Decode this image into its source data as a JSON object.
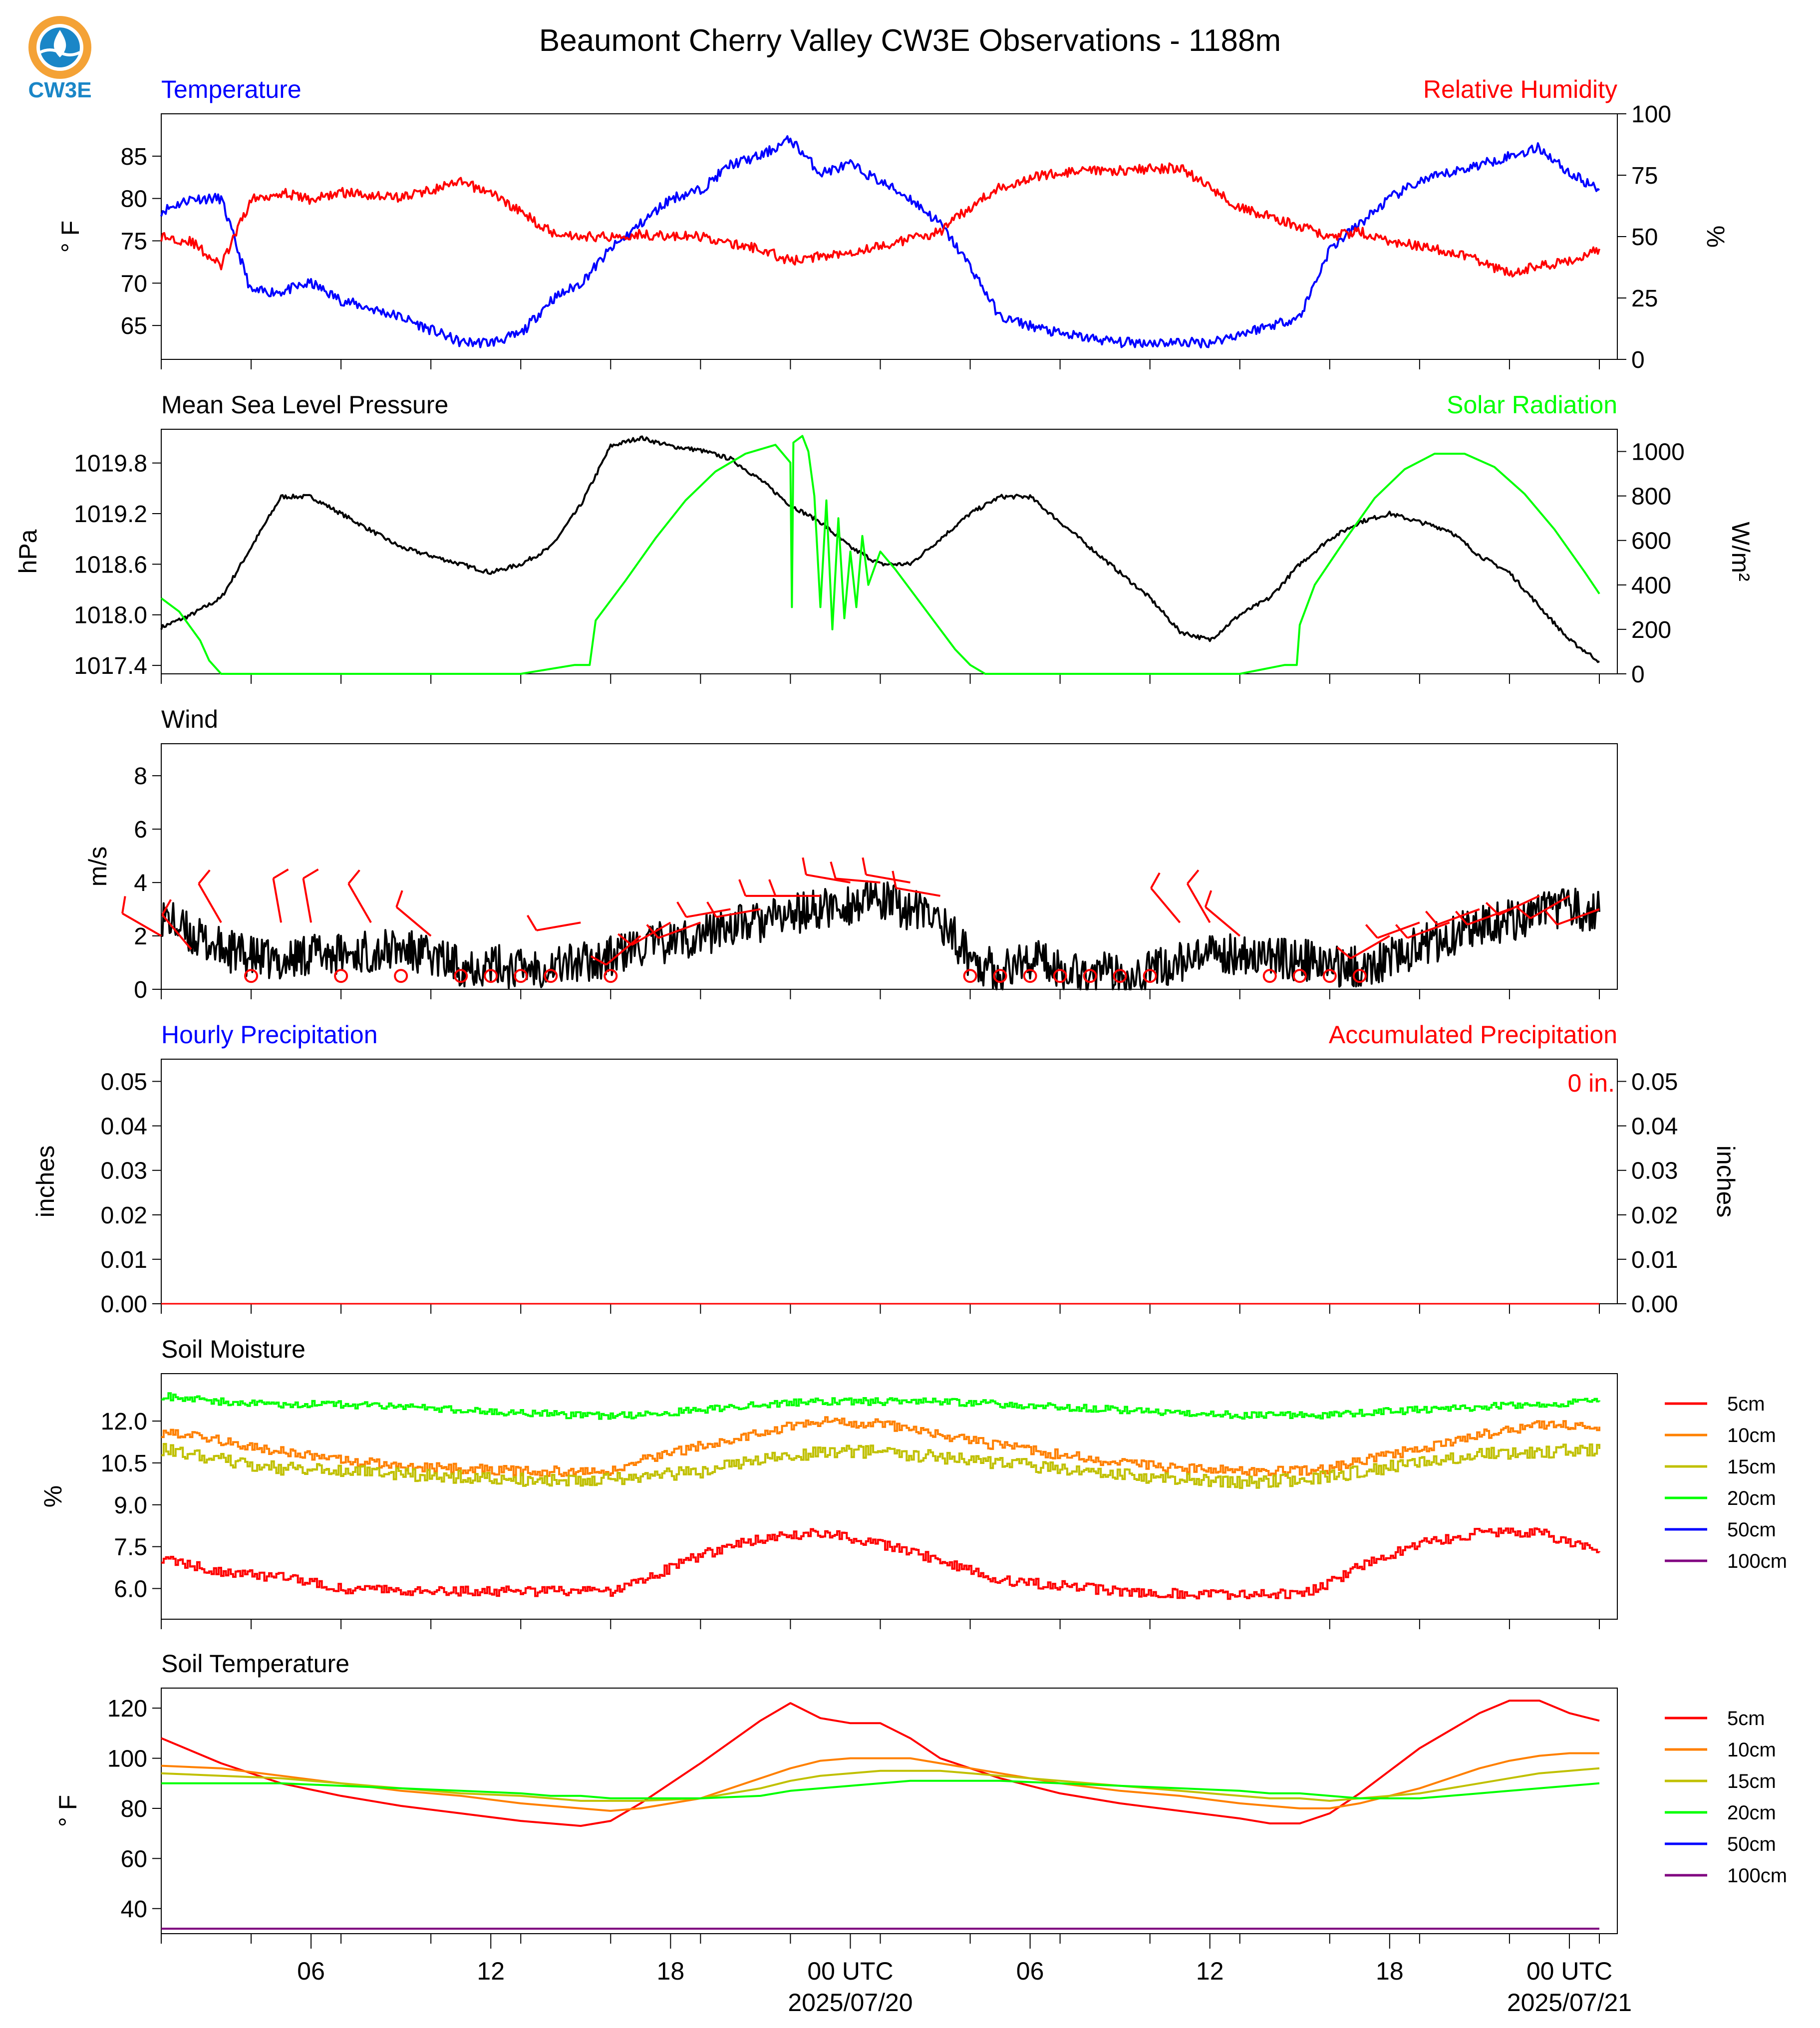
{
  "page": {
    "title": "Beaumont Cherry Valley CW3E Observations - 1188m",
    "logo_text": "CW3E",
    "x_tick_labels": [
      "06",
      "12",
      "18",
      "00 UTC",
      "06",
      "12",
      "18",
      "00 UTC"
    ],
    "x_date_labels": [
      "2025/07/20",
      "2025/07/21"
    ]
  },
  "colors": {
    "temperature": "#0000ff",
    "humidity": "#ff0000",
    "pressure": "#000000",
    "solar": "#00ff00",
    "wind_speed": "#000000",
    "wind_barbs": "#ff0000",
    "hourly_precip_title": "#0000ff",
    "accum_precip_title": "#ff0000",
    "soil_5cm": "#ff0000",
    "soil_10cm": "#ff8000",
    "soil_15cm": "#c0c000",
    "soil_20cm": "#00ff00",
    "soil_50cm": "#0000ff",
    "soil_100cm": "#800080",
    "logo_orange": "#f4a236",
    "logo_blue": "#1a86c7"
  },
  "chart_data": [
    {
      "id": "temp_rh",
      "type": "line",
      "title_left": "Temperature",
      "title_right": "Relative Humidity",
      "ylabel_left": "° F",
      "ylabel_right": "%",
      "ylim_left": [
        61,
        90
      ],
      "ylim_right": [
        0,
        100
      ],
      "yticks_left": [
        "65",
        "70",
        "75",
        "80",
        "85"
      ],
      "yticks_right": [
        "0",
        "25",
        "50",
        "75",
        "100"
      ],
      "x_hours": [
        0,
        1,
        2,
        3,
        4,
        5,
        6,
        8,
        10,
        11,
        12,
        13,
        14,
        15,
        16,
        17,
        18,
        19,
        20,
        21,
        22,
        23,
        24,
        25,
        26,
        27,
        28,
        29,
        30,
        32,
        34,
        35,
        36,
        37,
        38,
        39,
        40,
        41,
        42,
        43,
        44,
        45,
        46,
        47,
        48
      ],
      "series": [
        {
          "name": "Temperature",
          "axis": "left",
          "values": [
            78.5,
            80,
            80,
            69,
            69,
            70,
            68,
            66,
            63,
            63,
            64,
            68,
            70,
            74,
            77,
            80,
            81,
            84,
            85,
            87,
            83,
            84,
            82,
            80,
            77,
            72,
            66,
            65,
            64,
            63,
            63,
            63,
            64,
            65,
            66,
            74,
            77,
            80,
            82,
            83,
            84,
            85,
            86,
            83,
            81
          ]
        },
        {
          "name": "Relative Humidity",
          "axis": "right",
          "values": [
            50,
            48,
            38,
            65,
            68,
            65,
            68,
            66,
            72,
            68,
            60,
            52,
            50,
            50,
            51,
            50,
            50,
            47,
            45,
            40,
            42,
            44,
            46,
            49,
            52,
            62,
            70,
            74,
            76,
            77,
            78,
            70,
            62,
            58,
            54,
            50,
            52,
            48,
            46,
            44,
            40,
            35,
            38,
            40,
            45
          ]
        }
      ]
    },
    {
      "id": "mslp_solar",
      "type": "line",
      "title_left": "Mean Sea Level Pressure",
      "title_right": "Solar Radiation",
      "ylabel_left": "hPa",
      "ylabel_right": "W/m²",
      "ylim_left": [
        1017.3,
        1020.2
      ],
      "ylim_right": [
        0,
        1100
      ],
      "yticks_left": [
        "1017.4",
        "1018.0",
        "1018.6",
        "1019.2",
        "1019.8"
      ],
      "yticks_right": [
        "0",
        "200",
        "400",
        "600",
        "800",
        "1000"
      ],
      "pressure": {
        "name": "Mean Sea Level Pressure",
        "x": [
          0,
          1,
          2,
          3,
          4,
          5,
          6,
          7,
          8,
          9,
          10,
          11,
          12,
          13,
          14,
          15,
          16,
          17,
          18,
          19,
          20,
          21,
          22,
          23,
          24,
          25,
          26,
          27,
          28,
          29,
          30,
          31,
          32,
          33,
          34,
          35,
          36,
          37,
          38,
          39,
          40,
          41,
          42,
          43,
          44,
          45,
          46,
          47,
          48
        ],
        "y": [
          1017.85,
          1018.0,
          1018.2,
          1018.8,
          1019.4,
          1019.4,
          1019.2,
          1019.0,
          1018.8,
          1018.7,
          1018.6,
          1018.5,
          1018.6,
          1018.8,
          1019.3,
          1020.0,
          1020.1,
          1020.0,
          1019.95,
          1019.85,
          1019.6,
          1019.3,
          1019.1,
          1018.8,
          1018.6,
          1018.6,
          1018.9,
          1019.2,
          1019.4,
          1019.4,
          1019.1,
          1018.8,
          1018.5,
          1018.2,
          1017.8,
          1017.7,
          1018.0,
          1018.2,
          1018.6,
          1018.9,
          1019.1,
          1019.2,
          1019.1,
          1019.0,
          1018.7,
          1018.5,
          1018.1,
          1017.7,
          1017.45
        ]
      },
      "solar": {
        "name": "Solar Radiation",
        "x": [
          0,
          0.6,
          1.3,
          1.6,
          2,
          4,
          8,
          12,
          13.8,
          14.3,
          14.5,
          15.5,
          16.5,
          17.5,
          18.5,
          19.5,
          20.5,
          21.0,
          21.05,
          21.1,
          21.4,
          21.6,
          21.8,
          22.0,
          22.2,
          22.4,
          22.6,
          22.8,
          23.0,
          23.2,
          23.4,
          23.6,
          24.0,
          24.5,
          25.0,
          25.5,
          26.0,
          26.5,
          27.0,
          27.5,
          28,
          32,
          36,
          37.5,
          37.9,
          38.0,
          38.5,
          39.5,
          40.5,
          41.5,
          42.5,
          43.5,
          44.5,
          45.5,
          46.5,
          47.5,
          48
        ],
        "y": [
          340,
          280,
          150,
          60,
          0,
          0,
          0,
          0,
          40,
          40,
          240,
          420,
          610,
          780,
          910,
          990,
          1030,
          950,
          300,
          1040,
          1070,
          1000,
          800,
          300,
          780,
          200,
          700,
          250,
          550,
          300,
          620,
          400,
          550,
          470,
          380,
          290,
          200,
          110,
          40,
          0,
          0,
          0,
          0,
          40,
          40,
          220,
          400,
          600,
          790,
          920,
          990,
          990,
          930,
          810,
          650,
          460,
          360
        ]
      }
    },
    {
      "id": "wind",
      "type": "line",
      "title_left": "Wind",
      "ylabel_left": "m/s",
      "ylim_left": [
        0,
        9.2
      ],
      "yticks_left": [
        "0",
        "2",
        "4",
        "6",
        "8"
      ],
      "speed": {
        "x": [
          0,
          1,
          2,
          3,
          4,
          5,
          6,
          7,
          8,
          9,
          10,
          11,
          12,
          13,
          14,
          15,
          16,
          17,
          18,
          19,
          20,
          21,
          22,
          23,
          24,
          25,
          26,
          27,
          28,
          29,
          30,
          31,
          32,
          33,
          34,
          35,
          36,
          37,
          38,
          39,
          40,
          41,
          42,
          43,
          44,
          45,
          46,
          47,
          48
        ],
        "y": [
          2.8,
          2.0,
          1.5,
          1.2,
          1.0,
          1.4,
          1.3,
          1.4,
          1.5,
          1.2,
          0.9,
          0.9,
          0.8,
          0.9,
          1.0,
          1.2,
          1.6,
          1.8,
          2.0,
          2.4,
          2.5,
          2.8,
          3.0,
          3.2,
          3.3,
          3.0,
          2.6,
          1.2,
          0.6,
          1.2,
          0.8,
          0.6,
          0.6,
          0.7,
          1.0,
          1.2,
          1.4,
          1.2,
          1.1,
          0.9,
          0.8,
          1.2,
          1.6,
          2.0,
          2.4,
          2.6,
          2.8,
          3.0,
          2.9
        ]
      },
      "barbs": {
        "x": [
          0,
          1,
          2,
          3,
          4,
          5,
          6,
          7,
          8,
          9,
          10,
          11,
          12,
          13,
          14,
          15,
          16,
          17,
          18,
          19,
          20,
          21,
          22,
          23,
          24,
          25,
          26,
          27,
          28,
          29,
          30,
          31,
          32,
          33,
          34,
          35,
          36,
          37,
          38,
          39,
          40,
          41,
          42,
          43,
          44,
          45,
          46,
          47,
          48
        ],
        "speed_ms": [
          2.0,
          1.5,
          2.5,
          0.5,
          2.5,
          2.5,
          0.5,
          2.5,
          0.5,
          2.0,
          0.5,
          0.5,
          0.5,
          0.5,
          2.5,
          0.5,
          2.0,
          2.5,
          2.5,
          3.0,
          3.0,
          3.5,
          3.5,
          4.0,
          4.0,
          4.0,
          3.5,
          0.5,
          0.5,
          0.5,
          0.5,
          0.5,
          0.5,
          0.5,
          2.5,
          2.5,
          2.0,
          0.5,
          0.5,
          0.5,
          0.5,
          2.0,
          2.5,
          2.5,
          3.0,
          3.0,
          3.5,
          3.5,
          3.0
        ],
        "direction_deg": [
          300,
          320,
          330,
          0,
          350,
          350,
          0,
          330,
          0,
          310,
          0,
          0,
          0,
          0,
          260,
          0,
          230,
          240,
          250,
          260,
          260,
          270,
          270,
          280,
          275,
          280,
          280,
          0,
          0,
          0,
          0,
          0,
          0,
          0,
          320,
          330,
          310,
          0,
          0,
          0,
          0,
          240,
          250,
          250,
          250,
          250,
          245,
          240,
          250
        ]
      }
    },
    {
      "id": "precip",
      "type": "line",
      "title_left": "Hourly Precipitation",
      "title_right": "Accumulated Precipitation",
      "ylabel_left": "inches",
      "ylabel_right": "inches",
      "ylim_left": [
        0,
        0.055
      ],
      "ylim_right": [
        0,
        0.055
      ],
      "yticks_left": [
        "0.00",
        "0.01",
        "0.02",
        "0.03",
        "0.04",
        "0.05"
      ],
      "yticks_right": [
        "0.00",
        "0.01",
        "0.02",
        "0.03",
        "0.04",
        "0.05"
      ],
      "total_label": "0 in.",
      "series": [
        {
          "name": "Accumulated Precipitation",
          "x": [
            0,
            48
          ],
          "y": [
            0,
            0
          ]
        }
      ]
    },
    {
      "id": "soil_moisture",
      "type": "line",
      "title_left": "Soil Moisture",
      "ylabel_left": "%",
      "ylim_left": [
        4.9,
        13.7
      ],
      "yticks_left": [
        "6.0",
        "7.5",
        "9.0",
        "10.5",
        "12.0"
      ],
      "legend": [
        "5cm",
        "10cm",
        "15cm",
        "20cm",
        "50cm",
        "100cm"
      ],
      "x": [
        0,
        2,
        4,
        6,
        8,
        10,
        12,
        14,
        15,
        16,
        18,
        20,
        22,
        24,
        26,
        28,
        30,
        32,
        34,
        36,
        38,
        39,
        40,
        42,
        44,
        46,
        48
      ],
      "series": [
        {
          "name": "5cm",
          "values": [
            7.1,
            6.6,
            6.4,
            6.0,
            5.9,
            5.9,
            5.9,
            5.9,
            5.9,
            6.3,
            7.2,
            7.8,
            8.0,
            7.6,
            7.0,
            6.3,
            6.1,
            5.9,
            5.8,
            5.8,
            5.8,
            6.2,
            6.8,
            7.6,
            8.0,
            8.0,
            7.3
          ]
        },
        {
          "name": "10cm",
          "values": [
            11.6,
            11.3,
            10.9,
            10.6,
            10.4,
            10.3,
            10.2,
            10.2,
            10.2,
            10.6,
            11.1,
            11.6,
            12.0,
            11.9,
            11.5,
            11.1,
            10.8,
            10.5,
            10.3,
            10.2,
            10.2,
            10.3,
            10.6,
            11.0,
            11.5,
            11.9,
            11.8
          ]
        },
        {
          "name": "15cm",
          "values": [
            11.0,
            10.6,
            10.3,
            10.2,
            10.1,
            10.0,
            9.9,
            9.9,
            9.9,
            10.0,
            10.2,
            10.6,
            10.9,
            10.9,
            10.7,
            10.5,
            10.3,
            10.1,
            9.9,
            9.8,
            9.9,
            10.0,
            10.2,
            10.5,
            10.8,
            10.9,
            11.0
          ]
        },
        {
          "name": "20cm",
          "values": [
            12.9,
            12.7,
            12.6,
            12.6,
            12.5,
            12.4,
            12.3,
            12.2,
            12.2,
            12.2,
            12.4,
            12.6,
            12.7,
            12.7,
            12.7,
            12.6,
            12.5,
            12.4,
            12.3,
            12.2,
            12.2,
            12.2,
            12.3,
            12.4,
            12.5,
            12.6,
            12.7
          ]
        }
      ]
    },
    {
      "id": "soil_temp",
      "type": "line",
      "title_left": "Soil Temperature",
      "ylabel_left": "° F",
      "ylim_left": [
        30,
        128
      ],
      "yticks_left": [
        "40",
        "60",
        "80",
        "100",
        "120"
      ],
      "legend": [
        "5cm",
        "10cm",
        "15cm",
        "20cm",
        "50cm",
        "100cm"
      ],
      "x": [
        0,
        2,
        4,
        6,
        8,
        10,
        12,
        13,
        14,
        15,
        16,
        18,
        20,
        21,
        22,
        23,
        24,
        25,
        26,
        28,
        30,
        32,
        34,
        36,
        37,
        38,
        39,
        40,
        42,
        44,
        45,
        46,
        47,
        48
      ],
      "series": [
        {
          "name": "5cm",
          "values": [
            108,
            98,
            90,
            85,
            81,
            78,
            75,
            74,
            73,
            75,
            82,
            98,
            115,
            122,
            116,
            114,
            114,
            108,
            100,
            92,
            86,
            82,
            79,
            76,
            74,
            74,
            78,
            86,
            104,
            118,
            123,
            123,
            118,
            115
          ]
        },
        {
          "name": "10cm",
          "values": [
            97,
            96,
            93,
            90,
            87,
            85,
            82,
            81,
            80,
            79,
            80,
            84,
            92,
            96,
            99,
            100,
            100,
            100,
            98,
            94,
            90,
            87,
            85,
            82,
            81,
            80,
            80,
            82,
            88,
            96,
            99,
            101,
            102,
            102
          ]
        },
        {
          "name": "15cm",
          "values": [
            94,
            93,
            92,
            90,
            88,
            86,
            85,
            84,
            83,
            83,
            83,
            84,
            88,
            91,
            93,
            94,
            95,
            95,
            95,
            93,
            91,
            89,
            87,
            85,
            84,
            84,
            83,
            84,
            86,
            90,
            92,
            94,
            95,
            96
          ]
        },
        {
          "name": "20cm",
          "values": [
            90,
            90,
            90,
            89,
            88,
            87,
            86,
            85,
            85,
            84,
            84,
            84,
            85,
            87,
            88,
            89,
            90,
            91,
            91,
            91,
            90,
            89,
            88,
            87,
            86,
            86,
            85,
            84,
            84,
            86,
            87,
            88,
            89,
            90
          ]
        },
        {
          "name": "100cm",
          "values": [
            32,
            32,
            32,
            32,
            32,
            32,
            32,
            32,
            32,
            32,
            32,
            32,
            32,
            32,
            32,
            32,
            32,
            32,
            32,
            32,
            32,
            32,
            32,
            32,
            32,
            32,
            32,
            32,
            32,
            32,
            32,
            32,
            32,
            32
          ]
        }
      ]
    }
  ]
}
